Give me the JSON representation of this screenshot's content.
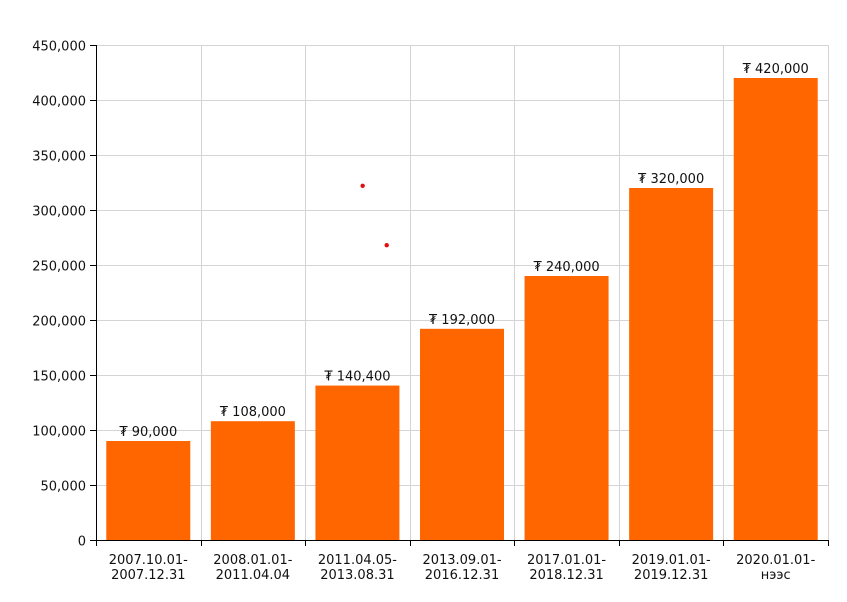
{
  "chart_data": {
    "type": "bar",
    "title": "",
    "xlabel": "",
    "ylabel": "",
    "currency_symbol": "₮",
    "categories": [
      [
        "2007.10.01-",
        "2007.12.31"
      ],
      [
        "2008.01.01-",
        "2011.04.04"
      ],
      [
        "2011.04.05-",
        "2013.08.31"
      ],
      [
        "2013.09.01-",
        "2016.12.31"
      ],
      [
        "2017.01.01-",
        "2018.12.31"
      ],
      [
        "2019.01.01-",
        "2019.12.31"
      ],
      [
        "2020.01.01-",
        "нээс"
      ]
    ],
    "values": [
      90000,
      108000,
      140400,
      192000,
      240000,
      320000,
      420000
    ],
    "value_labels": [
      "₮ 90,000",
      "₮ 108,000",
      "₮ 140,400",
      "₮ 192,000",
      "₮ 240,000",
      "₮ 320,000",
      "₮ 420,000"
    ],
    "ylim": [
      0,
      450000
    ],
    "yticks": [
      0,
      50000,
      100000,
      150000,
      200000,
      250000,
      300000,
      350000,
      400000,
      450000
    ],
    "ytick_labels": [
      "0",
      "50,000",
      "100,000",
      "150,000",
      "200,000",
      "250,000",
      "300,000",
      "350,000",
      "400,000",
      "450,000"
    ],
    "grid": true,
    "legend": "none",
    "bar_color": "#ff6600",
    "marker_color": "#e01010",
    "markers": [
      {
        "category_index": 2,
        "offset_in_category": 0.55,
        "y": 322000
      },
      {
        "category_index": 2,
        "offset_in_category": 0.78,
        "y": 268000
      }
    ]
  }
}
